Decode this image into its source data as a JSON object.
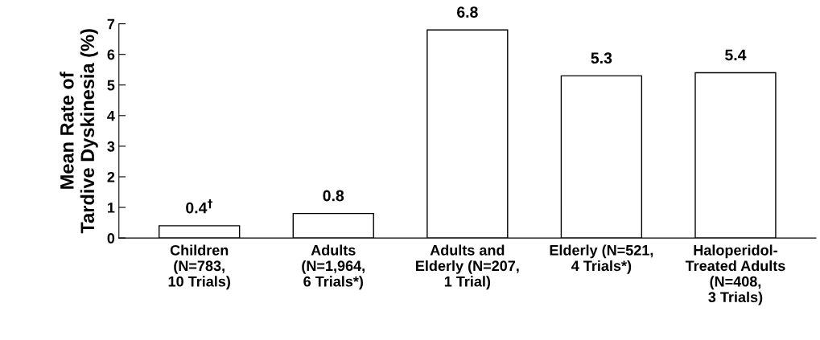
{
  "chart_data": {
    "type": "bar",
    "ylabel": "Mean Rate of\nTardive Dyskinesia (%)",
    "categories": [
      "Children\n(N=783,\n10 Trials)",
      "Adults\n(N=1,964,\n6 Trials*)",
      "Adults and\nElderly (N=207,\n1 Trial)",
      "Elderly (N=521,\n4 Trials*)",
      "Haloperidol-\nTreated Adults\n(N=408,\n3 Trials)"
    ],
    "values": [
      0.4,
      0.8,
      6.8,
      5.3,
      5.4
    ],
    "value_labels": [
      "0.4$^{†}$",
      "0.8",
      "6.8",
      "5.3",
      "5.4"
    ],
    "color": "#ffffff",
    "ylim": [
      0,
      7
    ],
    "yticks": [
      0,
      1,
      2,
      3,
      4,
      5,
      6,
      7
    ],
    "grid": false
  }
}
